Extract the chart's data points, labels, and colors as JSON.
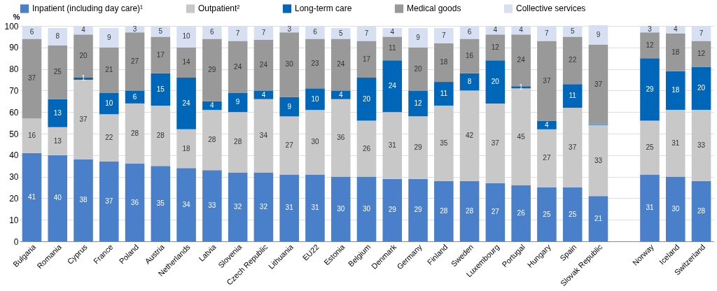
{
  "chart_data": {
    "type": "bar",
    "stacked": true,
    "ylabel": "%",
    "ylim": [
      0,
      100
    ],
    "yticks": [
      0,
      10,
      20,
      30,
      40,
      50,
      60,
      70,
      80,
      90,
      100
    ],
    "grid": "y",
    "legend": "top",
    "categories": [
      "Bulgaria",
      "Romania",
      "Cyprus",
      "France",
      "Poland",
      "Austria",
      "Netherlands",
      "Latvia",
      "Slovenia",
      "Czech Republic",
      "Lithuania",
      "EU22",
      "Estonia",
      "Belgium",
      "Denmark",
      "Germany",
      "Finland",
      "Sweden",
      "Luxembourg",
      "Portugal",
      "Hungary",
      "Spain",
      "Slovak Republic",
      null,
      "Norway",
      "Iceland",
      "Switzerland"
    ],
    "series": [
      {
        "name": "Inpatient (including day care)¹",
        "color": "#4a7fc9",
        "values": [
          41,
          40,
          38,
          37,
          36,
          35,
          34,
          33,
          32,
          32,
          31,
          31,
          30,
          30,
          29,
          29,
          28,
          28,
          27,
          26,
          25,
          25,
          21,
          null,
          31,
          30,
          28
        ],
        "value_labels": [
          "41",
          "40",
          "38",
          "37",
          "36",
          "35",
          "34",
          "33",
          "32",
          "32",
          "31",
          "31",
          "30",
          "30",
          "29",
          "29",
          "28",
          "28",
          "27",
          "26",
          "25",
          "25",
          "21",
          null,
          "31",
          "30",
          "28"
        ]
      },
      {
        "name": "Outpatient²",
        "color": "#c8c8c8",
        "values": [
          16,
          13,
          37,
          22,
          28,
          28,
          18,
          28,
          28,
          34,
          27,
          30,
          36,
          26,
          31,
          29,
          35,
          42,
          37,
          45,
          27,
          37,
          33,
          null,
          25,
          31,
          33
        ],
        "value_labels": [
          "16",
          "13",
          "37",
          "22",
          "28",
          "28",
          "18",
          "28",
          "28",
          "34",
          "27",
          "30",
          "36",
          "26",
          "31",
          "29",
          "35",
          "42",
          "37",
          "45",
          "27",
          "37",
          "33",
          null,
          "25",
          "31",
          "33"
        ]
      },
      {
        "name": "Long-term care",
        "color": "#0066b8",
        "values": [
          0,
          13,
          1,
          10,
          6,
          15,
          24,
          4,
          9,
          4,
          9,
          10,
          4,
          20,
          24,
          12,
          11,
          8,
          20,
          1,
          4,
          11,
          0.3,
          null,
          29,
          18,
          20
        ],
        "value_labels": [
          null,
          "13",
          "1",
          "10",
          "6",
          "15",
          "24",
          "4",
          "9",
          "4",
          "9",
          "10",
          "4",
          "20",
          "24",
          "12",
          "11",
          "8",
          "20",
          "1",
          "4",
          "11",
          null,
          null,
          "29",
          "18",
          "20"
        ]
      },
      {
        "name": "Medical goods",
        "color": "#999999",
        "values": [
          37,
          25,
          20,
          21,
          27,
          17,
          14,
          29,
          24,
          23.5,
          30,
          23,
          24,
          17,
          11,
          20,
          18,
          16,
          12,
          24,
          37,
          22,
          37,
          null,
          12,
          17.5,
          12
        ],
        "value_labels": [
          "37",
          "25",
          "20",
          "21",
          "27",
          "17",
          "14",
          "29",
          "24",
          "24",
          "30",
          "23",
          "24",
          "17",
          "11",
          "20",
          "18",
          "16",
          "12",
          "24",
          "37",
          "22",
          "37",
          null,
          "12",
          "18",
          "12"
        ]
      },
      {
        "name": "Collective services",
        "color": "#d6e0f2",
        "values": [
          6,
          8,
          4,
          9,
          3,
          5,
          10,
          6,
          7,
          6.5,
          3,
          6,
          5,
          7,
          4,
          9,
          7,
          6,
          4,
          4,
          7,
          5,
          9,
          null,
          3,
          3.5,
          7
        ],
        "value_labels": [
          "6",
          "8",
          "4",
          "9",
          "3",
          "5",
          "10",
          "6",
          "7",
          "7",
          "3",
          "6",
          "5",
          "7",
          "4",
          "9",
          "7",
          "6",
          "4",
          "4",
          "7",
          "5",
          "9",
          null,
          "3",
          "4",
          "7"
        ]
      }
    ]
  }
}
